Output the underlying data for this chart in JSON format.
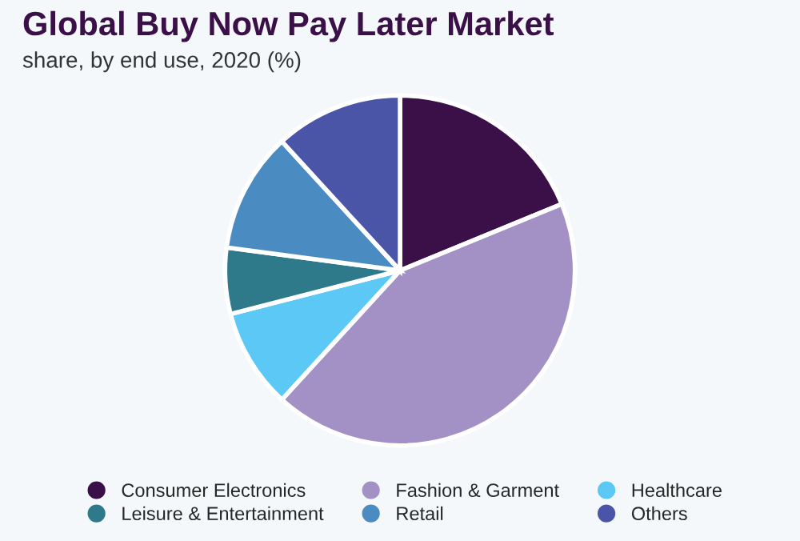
{
  "chart_data": {
    "type": "pie",
    "title": "Global Buy Now Pay Later Market",
    "subtitle": "share, by end use, 2020 (%)",
    "categories": [
      "Consumer Electronics",
      "Fashion & Garment",
      "Healthcare",
      "Leisure & Entertainment",
      "Retail",
      "Others"
    ],
    "values": [
      18.8,
      43.0,
      9.2,
      6.1,
      11.1,
      11.8
    ],
    "colors": [
      "#3b1048",
      "#a391c6",
      "#5bc8f5",
      "#2e7a8a",
      "#4a8bc2",
      "#4a55a8"
    ],
    "legend": "bottom"
  }
}
